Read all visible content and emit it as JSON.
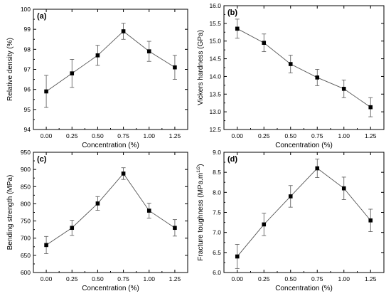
{
  "chart_data": [
    {
      "type": "line",
      "panel_label": "(a)",
      "xlabel": "Concentration (%)",
      "ylabel": "Relative density (%)",
      "x": [
        0.0,
        0.25,
        0.5,
        0.75,
        1.0,
        1.25
      ],
      "xticks": [
        "0.00",
        "0.25",
        "0.50",
        "0.75",
        "1.00",
        "1.25"
      ],
      "xlim": [
        -0.125,
        1.375
      ],
      "ylim": [
        94,
        100
      ],
      "yticks": [
        94,
        95,
        96,
        97,
        98,
        99,
        100
      ],
      "yticklabels": [
        "94",
        "95",
        "96",
        "97",
        "98",
        "99",
        "100"
      ],
      "series": [
        {
          "values": [
            95.9,
            96.8,
            97.7,
            98.9,
            97.9,
            97.1
          ],
          "errors": [
            0.8,
            0.7,
            0.5,
            0.4,
            0.5,
            0.6
          ]
        }
      ],
      "marker": "square",
      "grid": false
    },
    {
      "type": "line",
      "panel_label": "(b)",
      "xlabel": "Concentration (%)",
      "ylabel": "Vickers hardness (GPa)",
      "x": [
        0.0,
        0.25,
        0.5,
        0.75,
        1.0,
        1.25
      ],
      "xticks": [
        "0.00",
        "0.25",
        "0.50",
        "0.75",
        "1.00",
        "1.25"
      ],
      "xlim": [
        -0.125,
        1.375
      ],
      "ylim": [
        12.5,
        16.0
      ],
      "yticks": [
        12.5,
        13.0,
        13.5,
        14.0,
        14.5,
        15.0,
        15.5,
        16.0
      ],
      "yticklabels": [
        "12.5",
        "13.0",
        "13.5",
        "14.0",
        "14.5",
        "15.0",
        "15.5",
        "16.0"
      ],
      "series": [
        {
          "values": [
            15.35,
            14.95,
            14.35,
            13.97,
            13.65,
            13.13
          ],
          "errors": [
            0.27,
            0.25,
            0.25,
            0.23,
            0.25,
            0.27
          ]
        }
      ],
      "marker": "square",
      "grid": false
    },
    {
      "type": "line",
      "panel_label": "(c)",
      "xlabel": "Concentration (%)",
      "ylabel": "Bending strength (MPa)",
      "x": [
        0.0,
        0.25,
        0.5,
        0.75,
        1.0,
        1.25
      ],
      "xticks": [
        "0.00",
        "0.25",
        "0.50",
        "0.75",
        "1.00",
        "1.25"
      ],
      "xlim": [
        -0.125,
        1.375
      ],
      "ylim": [
        600,
        950
      ],
      "yticks": [
        600,
        650,
        700,
        750,
        800,
        850,
        900,
        950
      ],
      "yticklabels": [
        "600",
        "650",
        "700",
        "750",
        "800",
        "850",
        "900",
        "950"
      ],
      "series": [
        {
          "values": [
            680,
            730,
            801,
            888,
            780,
            730
          ],
          "errors": [
            25,
            22,
            20,
            17,
            22,
            24
          ]
        }
      ],
      "marker": "square",
      "grid": false
    },
    {
      "type": "line",
      "panel_label": "(d)",
      "xlabel": "Concentration (%)",
      "ylabel": "Fracture toughness (MPa.m",
      "ylabel_sup": "1/2",
      "ylabel_end": ")",
      "x": [
        0.0,
        0.25,
        0.5,
        0.75,
        1.0,
        1.25
      ],
      "xticks": [
        "0.00",
        "0.25",
        "0.50",
        "0.75",
        "1.00",
        "1.25"
      ],
      "xlim": [
        -0.125,
        1.375
      ],
      "ylim": [
        6.0,
        9.0
      ],
      "yticks": [
        6.0,
        6.5,
        7.0,
        7.5,
        8.0,
        8.5,
        9.0
      ],
      "yticklabels": [
        "6.0",
        "6.5",
        "7.0",
        "7.5",
        "8.0",
        "8.5",
        "9.0"
      ],
      "series": [
        {
          "values": [
            6.4,
            7.2,
            7.9,
            8.6,
            8.1,
            7.3
          ],
          "errors": [
            0.3,
            0.28,
            0.27,
            0.23,
            0.28,
            0.28
          ]
        }
      ],
      "marker": "square",
      "grid": false
    }
  ]
}
